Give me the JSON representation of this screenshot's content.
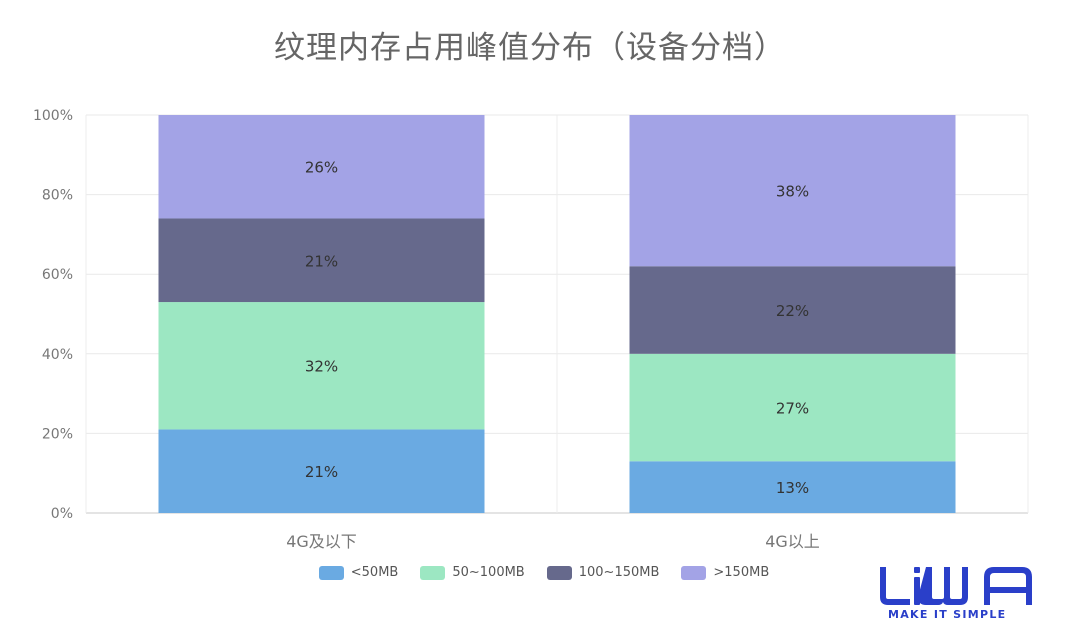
{
  "chart_data": {
    "type": "bar",
    "stacked": true,
    "title": "纹理内存占用峰值分布（设备分档）",
    "categories": [
      "4G及以下",
      "4G以上"
    ],
    "series": [
      {
        "name": "<50MB",
        "color": "#6aaae2",
        "values": [
          21,
          13
        ],
        "labels": [
          "21%",
          "13%"
        ]
      },
      {
        "name": "50~100MB",
        "color": "#9ce7c2",
        "values": [
          32,
          27
        ],
        "labels": [
          "32%",
          "27%"
        ]
      },
      {
        "name": "100~150MB",
        "color": "#66698c",
        "values": [
          21,
          22
        ],
        "labels": [
          "21%",
          "22%"
        ]
      },
      {
        "name": ">150MB",
        "color": "#a3a3e6",
        "values": [
          26,
          38
        ],
        "labels": [
          "26%",
          "38%"
        ]
      }
    ],
    "ylim": [
      0,
      100
    ],
    "yticks": [
      "0%",
      "20%",
      "40%",
      "60%",
      "80%",
      "100%"
    ],
    "grid": true,
    "legend": "bottom-center"
  },
  "brand": {
    "logo_text": "LiWA",
    "tagline": "MAKE IT SIMPLE",
    "color": "#2a3fc9"
  }
}
